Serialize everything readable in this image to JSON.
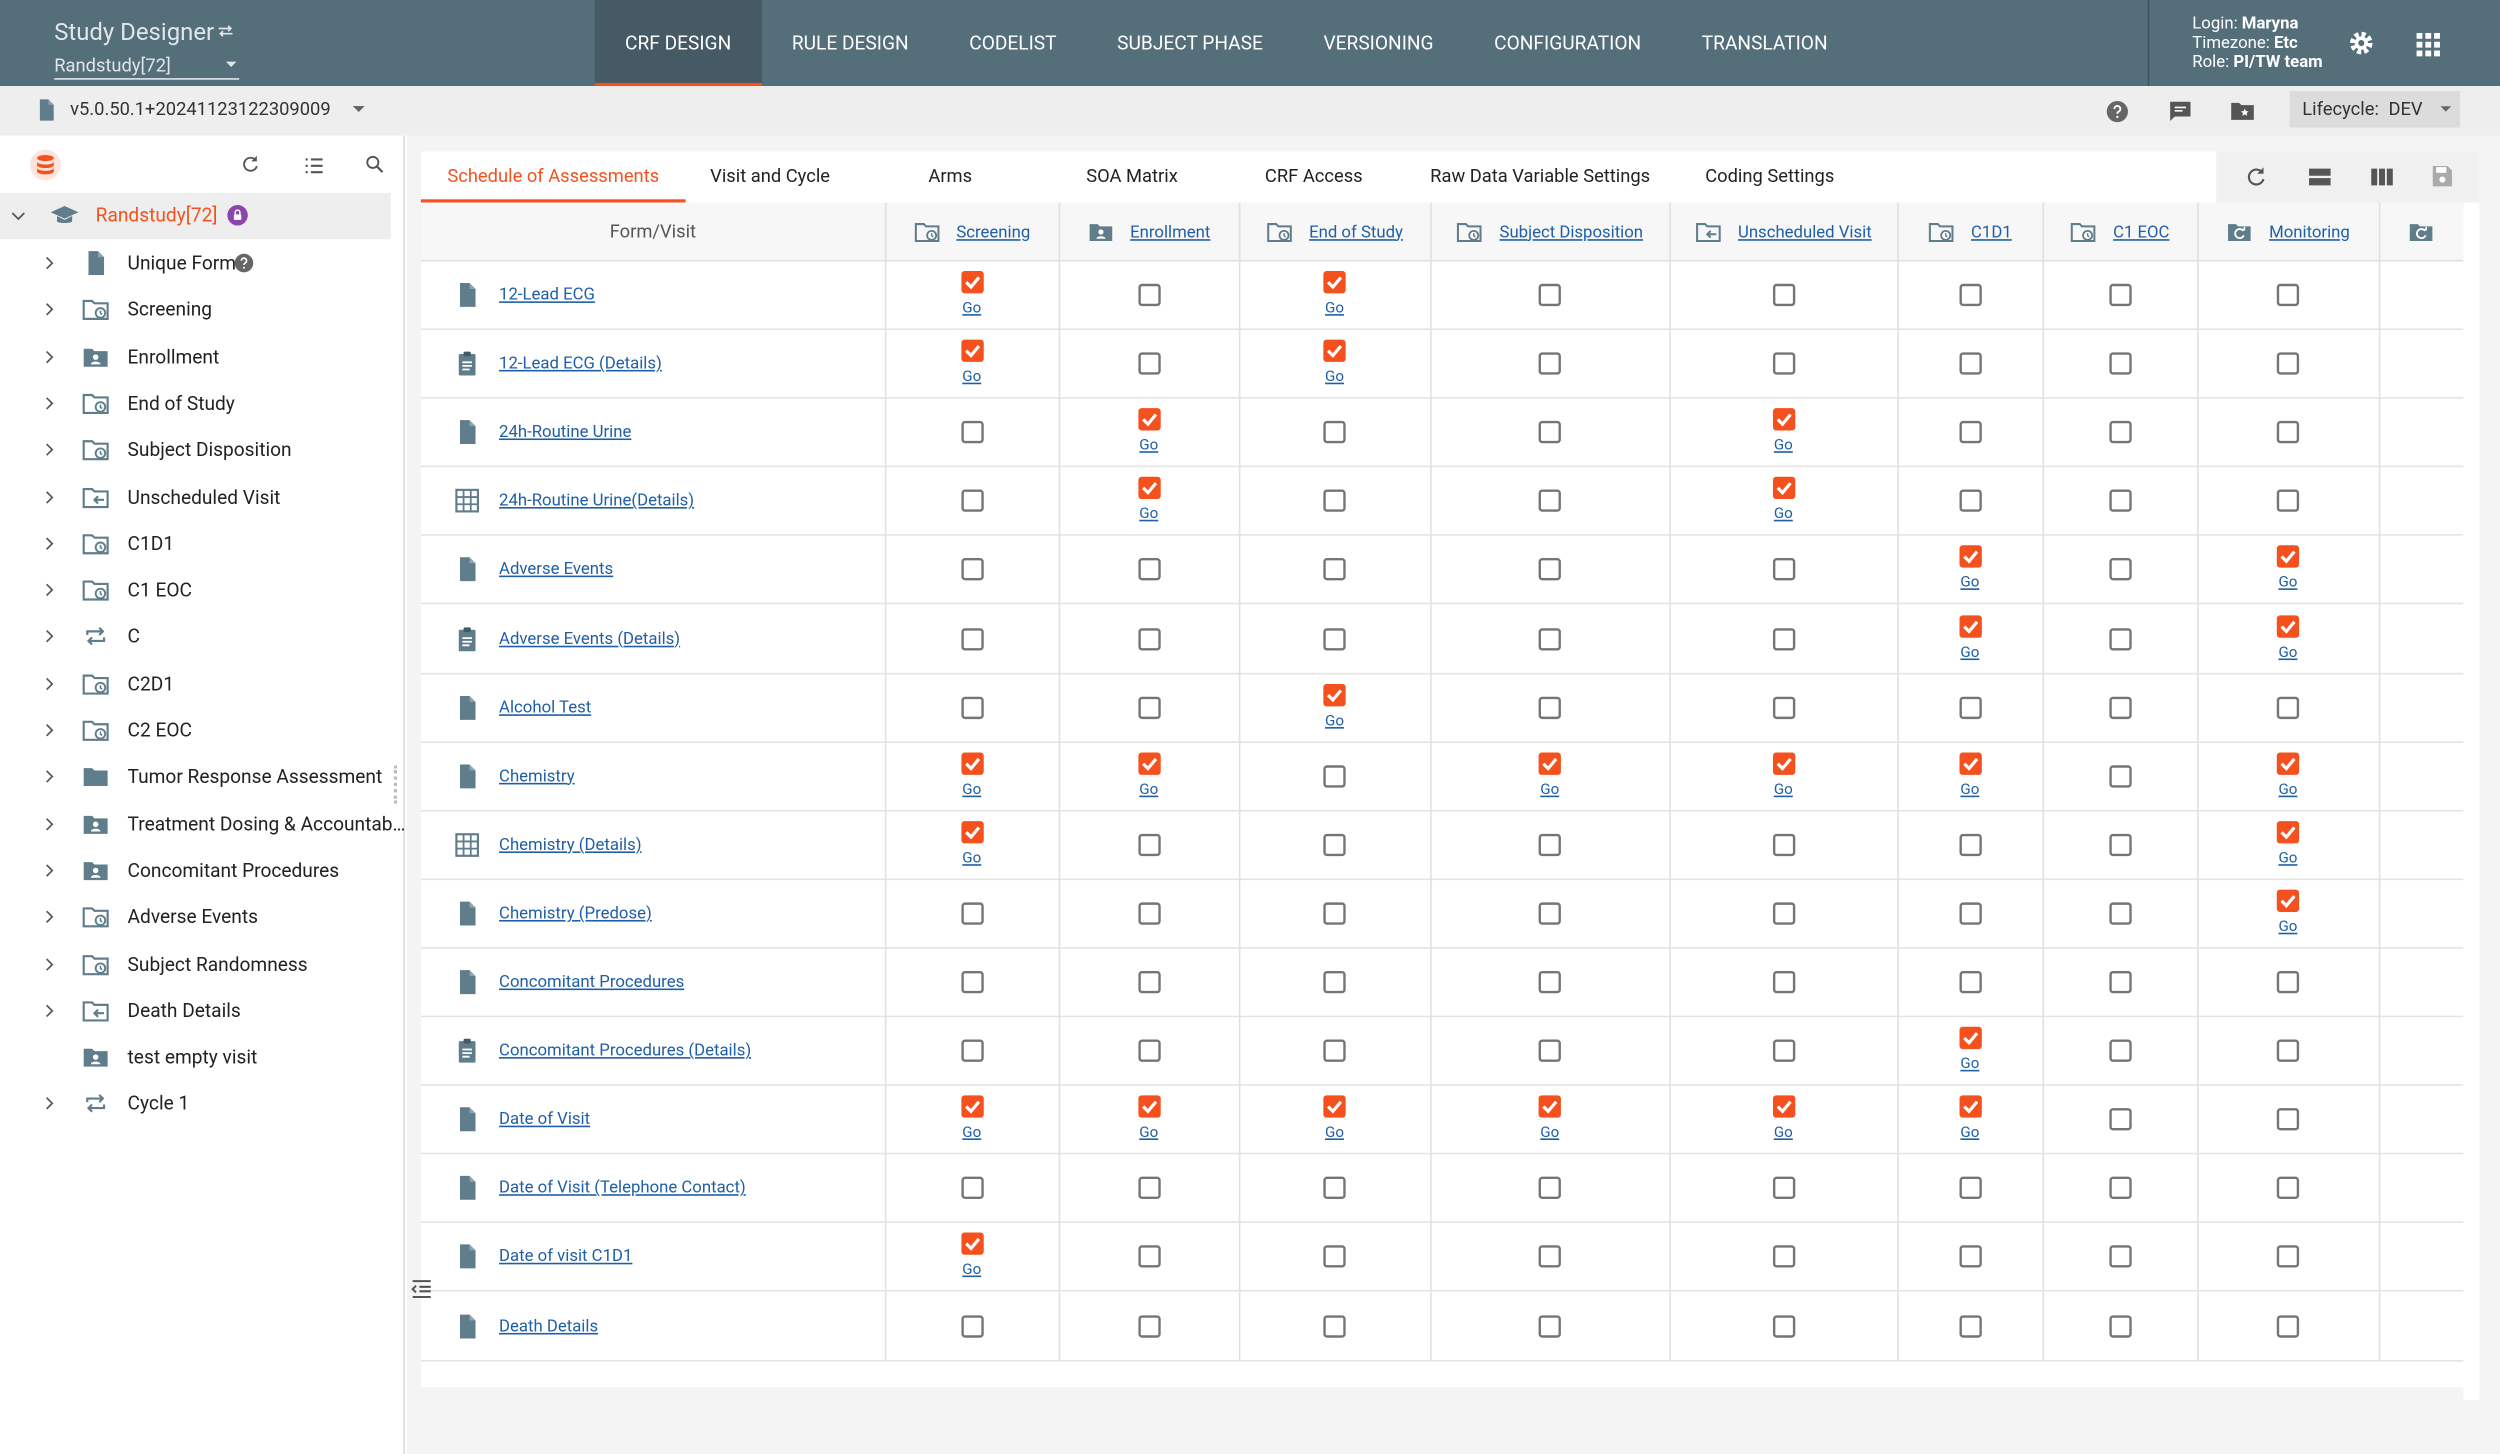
{
  "header": {
    "app_title": "Study Designer",
    "study": "Randstudy[72]",
    "nav": [
      "CRF DESIGN",
      "RULE DESIGN",
      "CODELIST",
      "SUBJECT PHASE",
      "VERSIONING",
      "CONFIGURATION",
      "TRANSLATION"
    ],
    "user": [
      {
        "label": "Login:",
        "value": "Maryna"
      },
      {
        "label": "Timezone:",
        "value": "Etc"
      },
      {
        "label": "Role:",
        "value": "PI/TW team"
      }
    ]
  },
  "toolbar": {
    "version": "v5.0.50.1+20241123122309009",
    "lifecycle_label": "Lifecycle:",
    "lifecycle": "DEV"
  },
  "tree": {
    "root": "Randstudy[72]",
    "items": [
      "Unique Form",
      "Screening",
      "Enrollment",
      "End of Study",
      "Subject Disposition",
      "Unscheduled Visit",
      "C1D1",
      "C1 EOC",
      "C",
      "C2D1",
      "C2 EOC",
      "Tumor Response Assessment",
      "Treatment Dosing & Accountab…",
      "Concomitant Procedures",
      "Adverse Events",
      "Subject Randomness",
      "Death Details",
      "test empty visit",
      "Cycle 1"
    ]
  },
  "tabs": [
    "Schedule of Assessments",
    "Visit and Cycle",
    "Arms",
    "SOA Matrix",
    "CRF Access",
    "Raw Data Variable Settings",
    "Coding Settings"
  ],
  "table": {
    "header": "Form/Visit",
    "columns": [
      "Screening",
      "Enrollment",
      "End of Study",
      "Subject Disposition",
      "Unscheduled Visit",
      "C1D1",
      "C1 EOC",
      "Monitoring"
    ],
    "action_label": "Go",
    "rows": [
      {
        "form": "12-Lead ECG",
        "checked": [
          true,
          false,
          true,
          false,
          false,
          false,
          false,
          false
        ]
      },
      {
        "form": "12-Lead ECG (Details)",
        "checked": [
          true,
          false,
          true,
          false,
          false,
          false,
          false,
          false
        ]
      },
      {
        "form": "24h-Routine Urine",
        "checked": [
          false,
          true,
          false,
          false,
          true,
          false,
          false,
          false
        ]
      },
      {
        "form": "24h-Routine Urine(Details)",
        "checked": [
          false,
          true,
          false,
          false,
          true,
          false,
          false,
          false
        ]
      },
      {
        "form": "Adverse Events",
        "checked": [
          false,
          false,
          false,
          false,
          false,
          true,
          false,
          true
        ]
      },
      {
        "form": "Adverse Events (Details)",
        "checked": [
          false,
          false,
          false,
          false,
          false,
          true,
          false,
          true
        ]
      },
      {
        "form": "Alcohol Test",
        "checked": [
          false,
          false,
          true,
          false,
          false,
          false,
          false,
          false
        ]
      },
      {
        "form": "Chemistry",
        "checked": [
          true,
          true,
          false,
          true,
          true,
          true,
          false,
          true
        ]
      },
      {
        "form": "Chemistry (Details)",
        "checked": [
          true,
          false,
          false,
          false,
          false,
          false,
          false,
          true
        ]
      },
      {
        "form": "Chemistry (Predose)",
        "checked": [
          false,
          false,
          false,
          false,
          false,
          false,
          false,
          true
        ]
      },
      {
        "form": "Concomitant Procedures",
        "checked": [
          false,
          false,
          false,
          false,
          false,
          false,
          false,
          false
        ]
      },
      {
        "form": "Concomitant Procedures (Details)",
        "checked": [
          false,
          false,
          false,
          false,
          false,
          true,
          false,
          false
        ]
      },
      {
        "form": "Date of Visit",
        "checked": [
          true,
          true,
          true,
          true,
          true,
          true,
          false,
          false
        ]
      },
      {
        "form": "Date of Visit (Telephone Contact)",
        "checked": [
          false,
          false,
          false,
          false,
          false,
          false,
          false,
          false
        ]
      },
      {
        "form": "Date of visit C1D1",
        "checked": [
          true,
          false,
          false,
          false,
          false,
          false,
          false,
          false
        ]
      },
      {
        "form": "Death Details",
        "checked": [
          false,
          false,
          false,
          false,
          false,
          false,
          false,
          false
        ]
      }
    ]
  }
}
